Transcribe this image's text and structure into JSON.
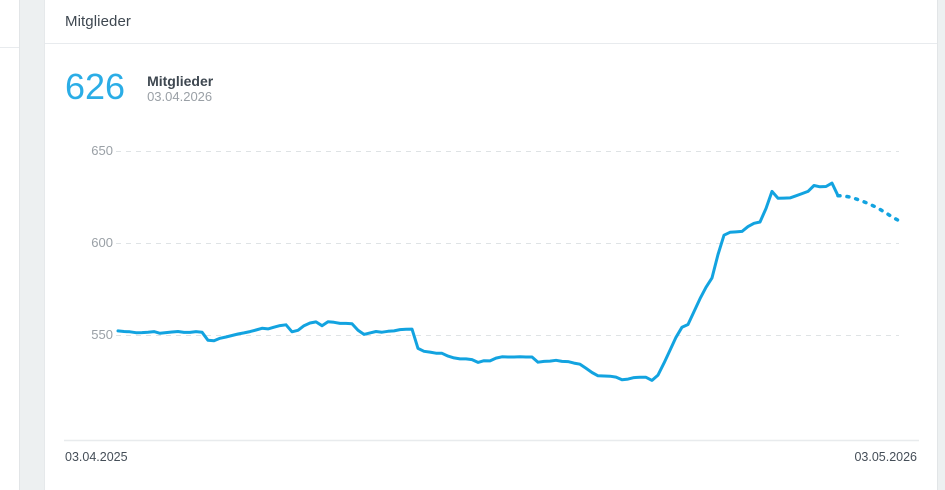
{
  "adjacent_card": {
    "clipped_text": "0"
  },
  "card": {
    "title": "Mitglieder",
    "stat": {
      "value": "626",
      "label": "Mitglieder",
      "date": "03.04.2026"
    }
  },
  "chart_data": {
    "type": "line",
    "title": "Mitglieder",
    "current_value": 626,
    "current_value_date": "03.04.2026",
    "x_axis": {
      "start_label": "03.04.2025",
      "end_label": "03.05.2026"
    },
    "y_axis": {
      "tick_labels_top_to_bottom": [
        "650",
        "600",
        "550"
      ],
      "ticks": [
        550,
        600,
        650
      ],
      "ylim": [
        490,
        665
      ],
      "grid": "dashed"
    },
    "legend": "none",
    "series": [
      {
        "name": "history",
        "style": "solid",
        "color": "#12a3e0",
        "values": [
          552.5,
          552.2,
          552.0,
          551.5,
          551.6,
          551.8,
          552.1,
          551.2,
          551.6,
          551.9,
          552.2,
          551.7,
          551.7,
          552.1,
          551.8,
          547.4,
          547.1,
          548.5,
          549.2,
          550.0,
          550.8,
          551.4,
          552.1,
          553.0,
          553.9,
          553.6,
          554.5,
          555.4,
          555.8,
          552.0,
          552.8,
          555.3,
          556.8,
          557.4,
          555.3,
          557.5,
          557.2,
          556.6,
          556.6,
          556.4,
          552.8,
          550.6,
          551.4,
          552.2,
          551.8,
          552.3,
          552.5,
          553.2,
          553.4,
          553.5,
          543.0,
          541.4,
          541.0,
          540.4,
          540.3,
          538.8,
          537.8,
          537.3,
          537.3,
          536.9,
          535.4,
          536.3,
          536.2,
          537.7,
          538.4,
          538.3,
          538.3,
          538.4,
          538.3,
          538.3,
          535.5,
          535.9,
          536.1,
          536.5,
          535.9,
          535.8,
          535.0,
          534.4,
          532.2,
          529.9,
          528.1,
          528.0,
          527.9,
          527.4,
          525.9,
          526.3,
          527.1,
          527.3,
          527.3,
          525.6,
          528.5,
          535.0,
          542.0,
          549.0,
          554.5,
          556.0,
          563.0,
          570.0,
          576.2,
          581.3,
          594.0,
          604.5,
          606.1,
          606.3,
          606.6,
          609.2,
          611.0,
          611.7,
          619.0,
          628.3,
          624.6,
          624.7,
          624.8,
          625.9,
          627.1,
          628.3,
          631.5,
          630.8,
          631.0,
          632.8,
          626.0
        ]
      },
      {
        "name": "forecast",
        "style": "dotted",
        "color": "#12a3e0",
        "values": [
          626.0,
          625.8,
          625.2,
          624.2,
          623.0,
          621.7,
          620.1,
          618.3,
          616.3,
          614.2,
          612.4
        ]
      }
    ]
  },
  "colors": {
    "accent_blue": "#2bade6",
    "line_blue": "#12a3e0",
    "page_background": "#edf0f1",
    "gridline": "#dfe3e5",
    "muted_text": "#9aa0a6",
    "dark_text": "#3e4750"
  }
}
